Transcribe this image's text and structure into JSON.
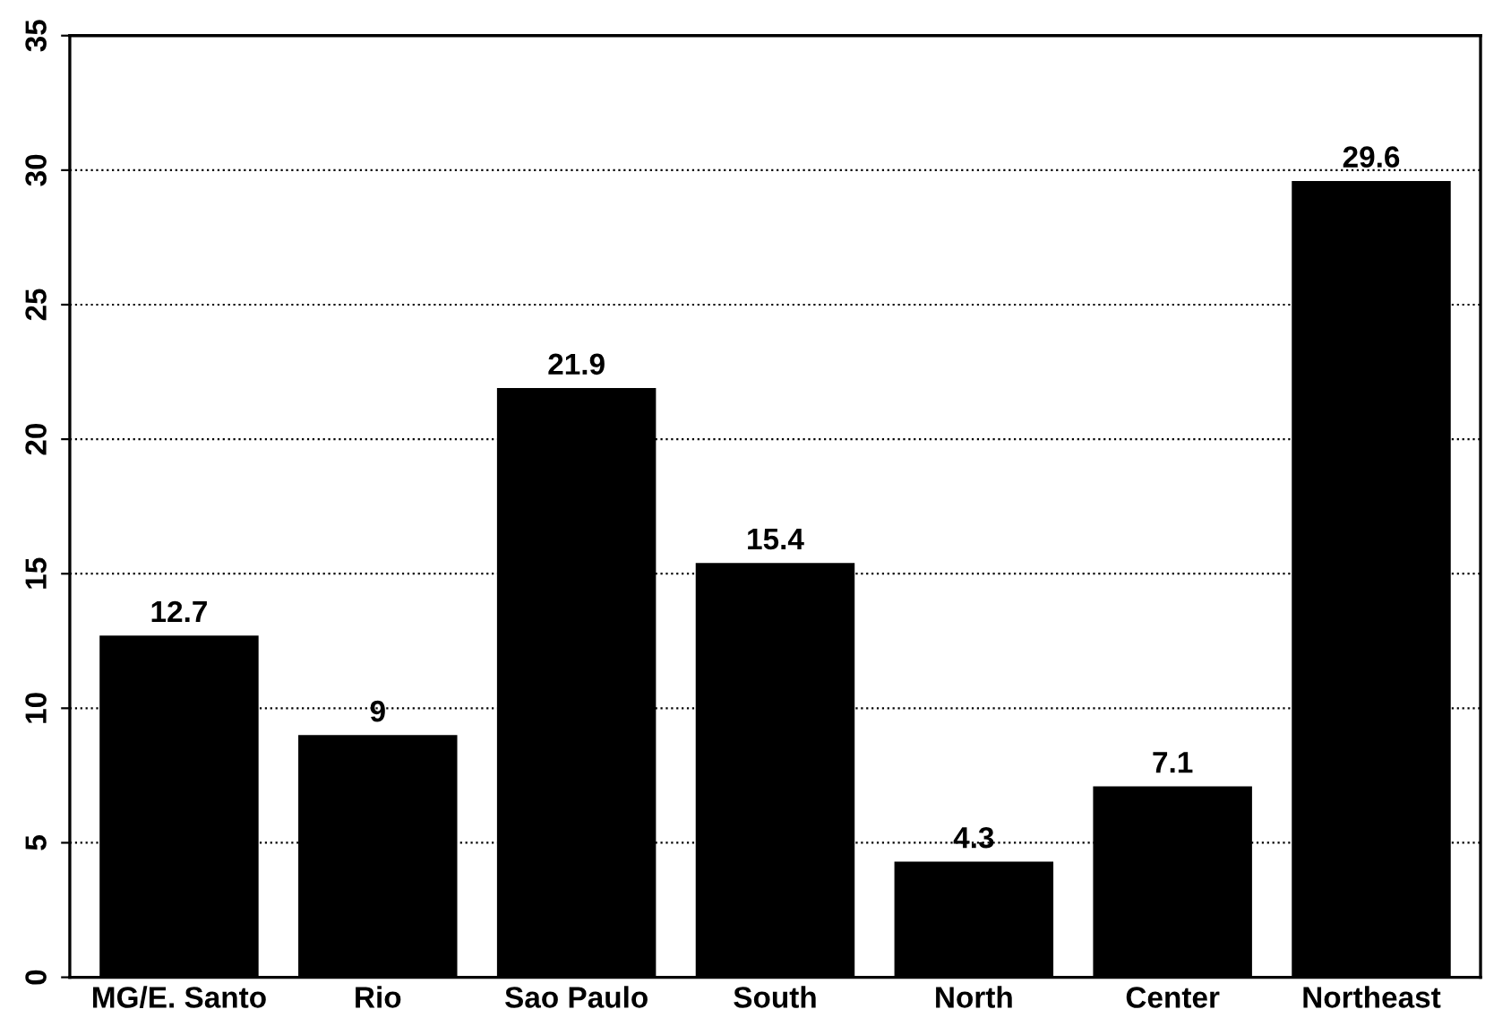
{
  "chart_data": {
    "type": "bar",
    "categories": [
      "MG/E. Santo",
      "Rio",
      "Sao Paulo",
      "South",
      "North",
      "Center",
      "Northeast"
    ],
    "values": [
      12.7,
      9,
      21.9,
      15.4,
      4.3,
      7.1,
      29.6
    ],
    "color": "#000000",
    "ylim": [
      0,
      35
    ],
    "yticks": [
      0,
      5,
      10,
      15,
      20,
      25,
      30,
      35
    ],
    "grid": "y",
    "data_labels": true
  }
}
